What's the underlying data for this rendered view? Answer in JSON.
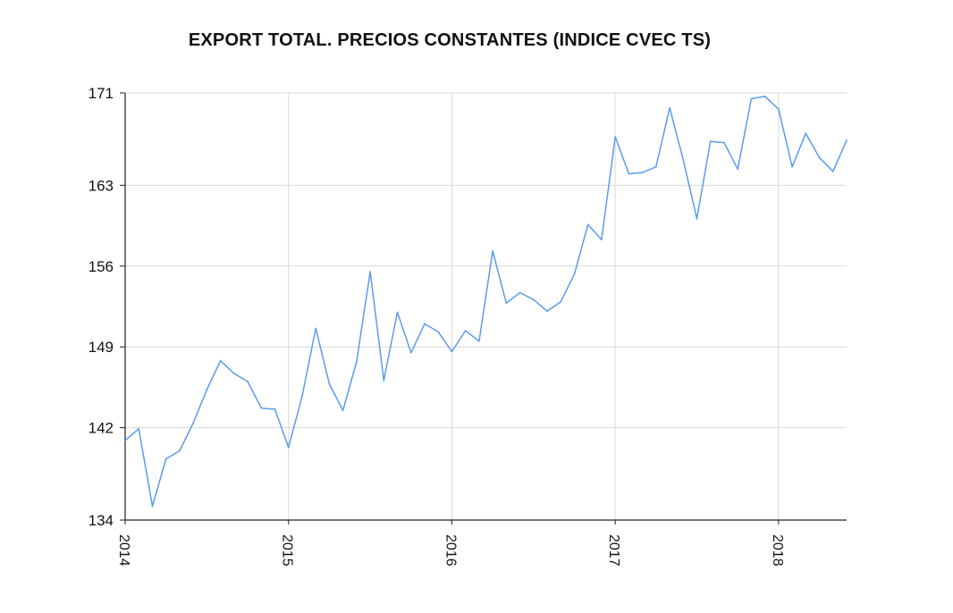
{
  "chart_data": {
    "type": "line",
    "title": "EXPORT TOTAL. PRECIOS CONSTANTES (INDICE CVEC TS)",
    "xlabel": "",
    "ylabel": "",
    "ylim": [
      134,
      171
    ],
    "xlim": [
      "2014-01",
      "2018-05"
    ],
    "y_ticks": [
      134,
      142,
      149,
      156,
      163,
      171
    ],
    "x_ticks": [
      "2014",
      "2015",
      "2016",
      "2017",
      "2018"
    ],
    "grid": true,
    "series": [
      {
        "color": "#5b9bef",
        "points": [
          [
            "2014-01",
            140.9
          ],
          [
            "2014-02",
            141.9
          ],
          [
            "2014-03",
            135.2
          ],
          [
            "2014-04",
            139.3
          ],
          [
            "2014-05",
            140.0
          ],
          [
            "2014-06",
            142.4
          ],
          [
            "2014-07",
            145.3
          ],
          [
            "2014-08",
            147.8
          ],
          [
            "2014-09",
            146.7
          ],
          [
            "2014-10",
            146.0
          ],
          [
            "2014-11",
            143.7
          ],
          [
            "2014-12",
            143.6
          ],
          [
            "2015-01",
            140.3
          ],
          [
            "2015-02",
            144.7
          ],
          [
            "2015-03",
            150.6
          ],
          [
            "2015-04",
            145.8
          ],
          [
            "2015-05",
            143.5
          ],
          [
            "2015-06",
            147.7
          ],
          [
            "2015-07",
            155.5
          ],
          [
            "2015-08",
            146.1
          ],
          [
            "2015-09",
            152.0
          ],
          [
            "2015-10",
            148.5
          ],
          [
            "2015-11",
            151.0
          ],
          [
            "2015-12",
            150.3
          ],
          [
            "2016-01",
            148.6
          ],
          [
            "2016-02",
            150.4
          ],
          [
            "2016-03",
            149.5
          ],
          [
            "2016-04",
            157.3
          ],
          [
            "2016-05",
            152.8
          ],
          [
            "2016-06",
            153.7
          ],
          [
            "2016-07",
            153.1
          ],
          [
            "2016-08",
            152.1
          ],
          [
            "2016-09",
            152.9
          ],
          [
            "2016-10",
            155.3
          ],
          [
            "2016-11",
            159.6
          ],
          [
            "2016-12",
            158.3
          ],
          [
            "2017-01",
            167.2
          ],
          [
            "2017-02",
            164.0
          ],
          [
            "2017-03",
            164.1
          ],
          [
            "2017-04",
            164.6
          ],
          [
            "2017-05",
            169.7
          ],
          [
            "2017-06",
            165.2
          ],
          [
            "2017-07",
            160.1
          ],
          [
            "2017-08",
            166.8
          ],
          [
            "2017-09",
            166.7
          ],
          [
            "2017-10",
            164.4
          ],
          [
            "2017-11",
            170.5
          ],
          [
            "2017-12",
            170.7
          ],
          [
            "2018-01",
            169.6
          ],
          [
            "2018-02",
            164.6
          ],
          [
            "2018-03",
            167.5
          ],
          [
            "2018-04",
            165.4
          ],
          [
            "2018-05",
            164.2
          ],
          [
            "2018-06",
            166.9
          ]
        ]
      }
    ]
  }
}
